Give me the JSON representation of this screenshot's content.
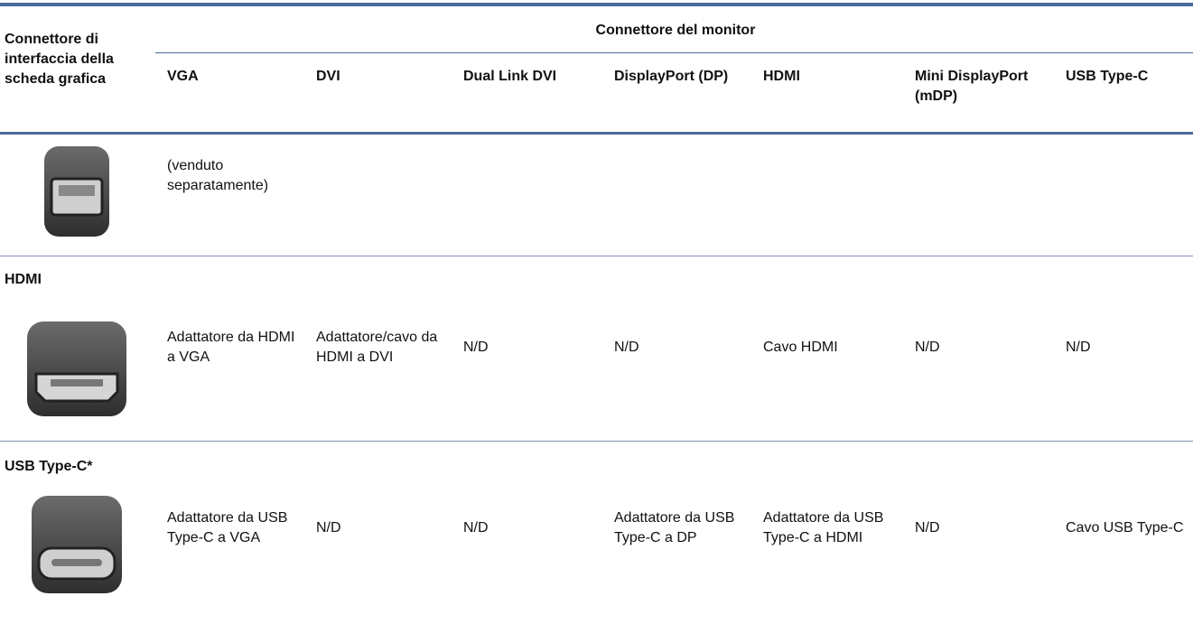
{
  "header": {
    "row_header": "Connettore di interfaccia della scheda grafica",
    "column_group_title": "Connettore del monitor",
    "columns": [
      "VGA",
      "DVI",
      "Dual Link DVI",
      "DisplayPort (DP)",
      "HDMI",
      "Mini DisplayPort (mDP)",
      "USB Type-C"
    ]
  },
  "rows": [
    {
      "cells": [
        "(venduto separatamente)"
      ]
    },
    {
      "label": "HDMI",
      "cells": [
        "Adattatore da HDMI a VGA",
        "Adattatore/cavo da HDMI a DVI",
        "N/D",
        "N/D",
        "Cavo HDMI",
        "N/D",
        "N/D"
      ]
    },
    {
      "label": "USB Type-C*",
      "cells": [
        "Adattatore da USB Type-C a VGA",
        "N/D",
        "N/D",
        "Adattatore da USB Type-C a DP",
        "Adattatore da USB Type-C a HDMI",
        "N/D",
        "Cavo USB Type-C"
      ]
    }
  ]
}
